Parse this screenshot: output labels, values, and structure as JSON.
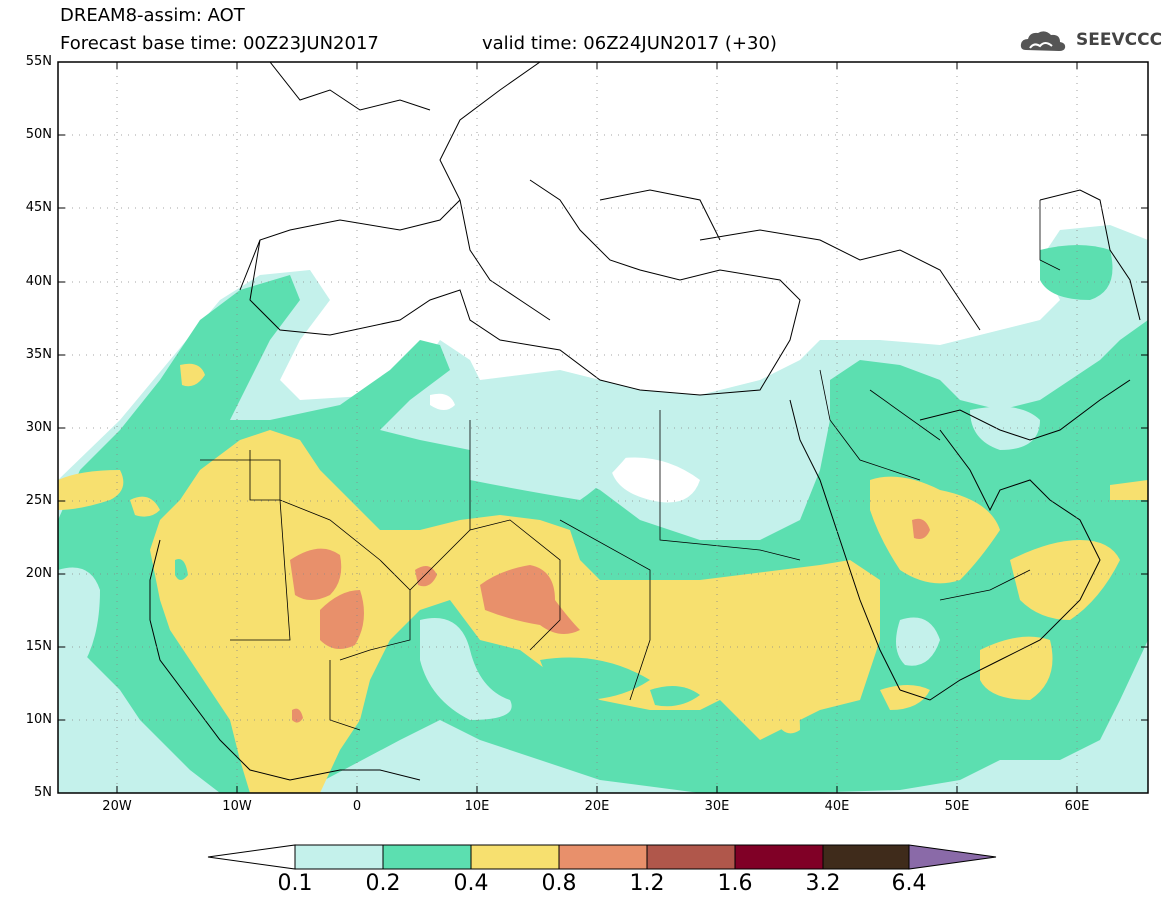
{
  "header": {
    "title": "DREAM8-assim: AOT",
    "forecast_base": "Forecast base time: 00Z23JUN2017",
    "valid_time": "valid time: 06Z24JUN2017 (+30)",
    "logo_text": "SEEVCCC",
    "logo_icon": "cloud-icon"
  },
  "map": {
    "lat_labels": [
      "55N",
      "50N",
      "45N",
      "40N",
      "35N",
      "30N",
      "25N",
      "20N",
      "15N",
      "10N",
      "5N"
    ],
    "lon_labels": [
      "20W",
      "10W",
      "0",
      "10E",
      "20E",
      "30E",
      "40E",
      "50E",
      "60E"
    ]
  },
  "colorbar": {
    "labels": [
      "0.1",
      "0.2",
      "0.4",
      "0.8",
      "1.2",
      "1.6",
      "3.2",
      "6.4"
    ],
    "colors": [
      "#ffffff",
      "#c4f1eb",
      "#5cdfb0",
      "#f7e06f",
      "#e8906b",
      "#b0574b",
      "#800026",
      "#3f2b1b",
      "#8a6aa8"
    ]
  },
  "colors": {
    "level_0_1": "#c4f1eb",
    "level_0_2": "#5cdfb0",
    "level_0_4": "#f7e06f",
    "level_0_8": "#e8906b",
    "borders": "#000000"
  }
}
